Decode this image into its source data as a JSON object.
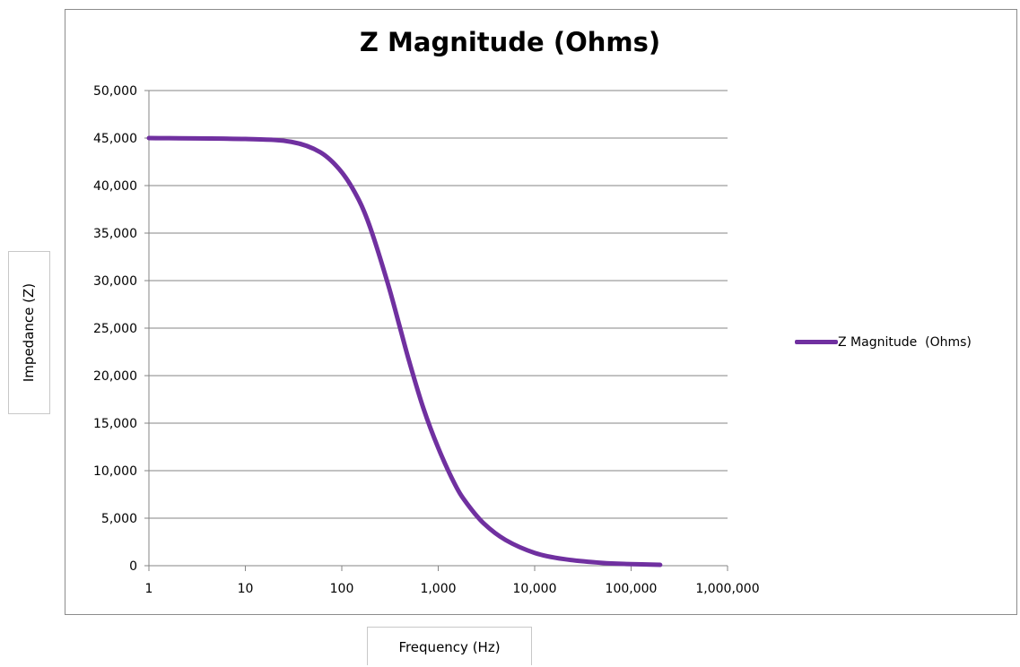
{
  "chart_data": {
    "type": "line",
    "title": "Z Magnitude (Ohms)",
    "xlabel": "Frequency (Hz)",
    "ylabel": "Impedance (Z)",
    "x_scale": "log",
    "xlim": [
      1,
      1000000
    ],
    "ylim": [
      0,
      50000
    ],
    "x_ticks": [
      "1",
      "10",
      "100",
      "1,000",
      "10,000",
      "100,000",
      "1,000,000"
    ],
    "y_ticks": [
      "0",
      "5,000",
      "10,000",
      "15,000",
      "20,000",
      "25,000",
      "30,000",
      "35,000",
      "40,000",
      "45,000",
      "50,000"
    ],
    "grid": "horizontal",
    "legend_position": "right",
    "series": [
      {
        "name": "Z Magnitude  (Ohms)",
        "color": "#7030a0",
        "x": [
          1,
          10,
          30,
          60,
          100,
          150,
          200,
          300,
          400,
          500,
          700,
          1000,
          1500,
          2000,
          3000,
          5000,
          10000,
          20000,
          50000,
          100000,
          200000
        ],
        "y": [
          45000,
          44900,
          44600,
          43500,
          41400,
          38500,
          35400,
          29700,
          25100,
          21500,
          16600,
          12400,
          8500,
          6500,
          4400,
          2700,
          1350,
          700,
          300,
          170,
          90
        ]
      }
    ]
  }
}
